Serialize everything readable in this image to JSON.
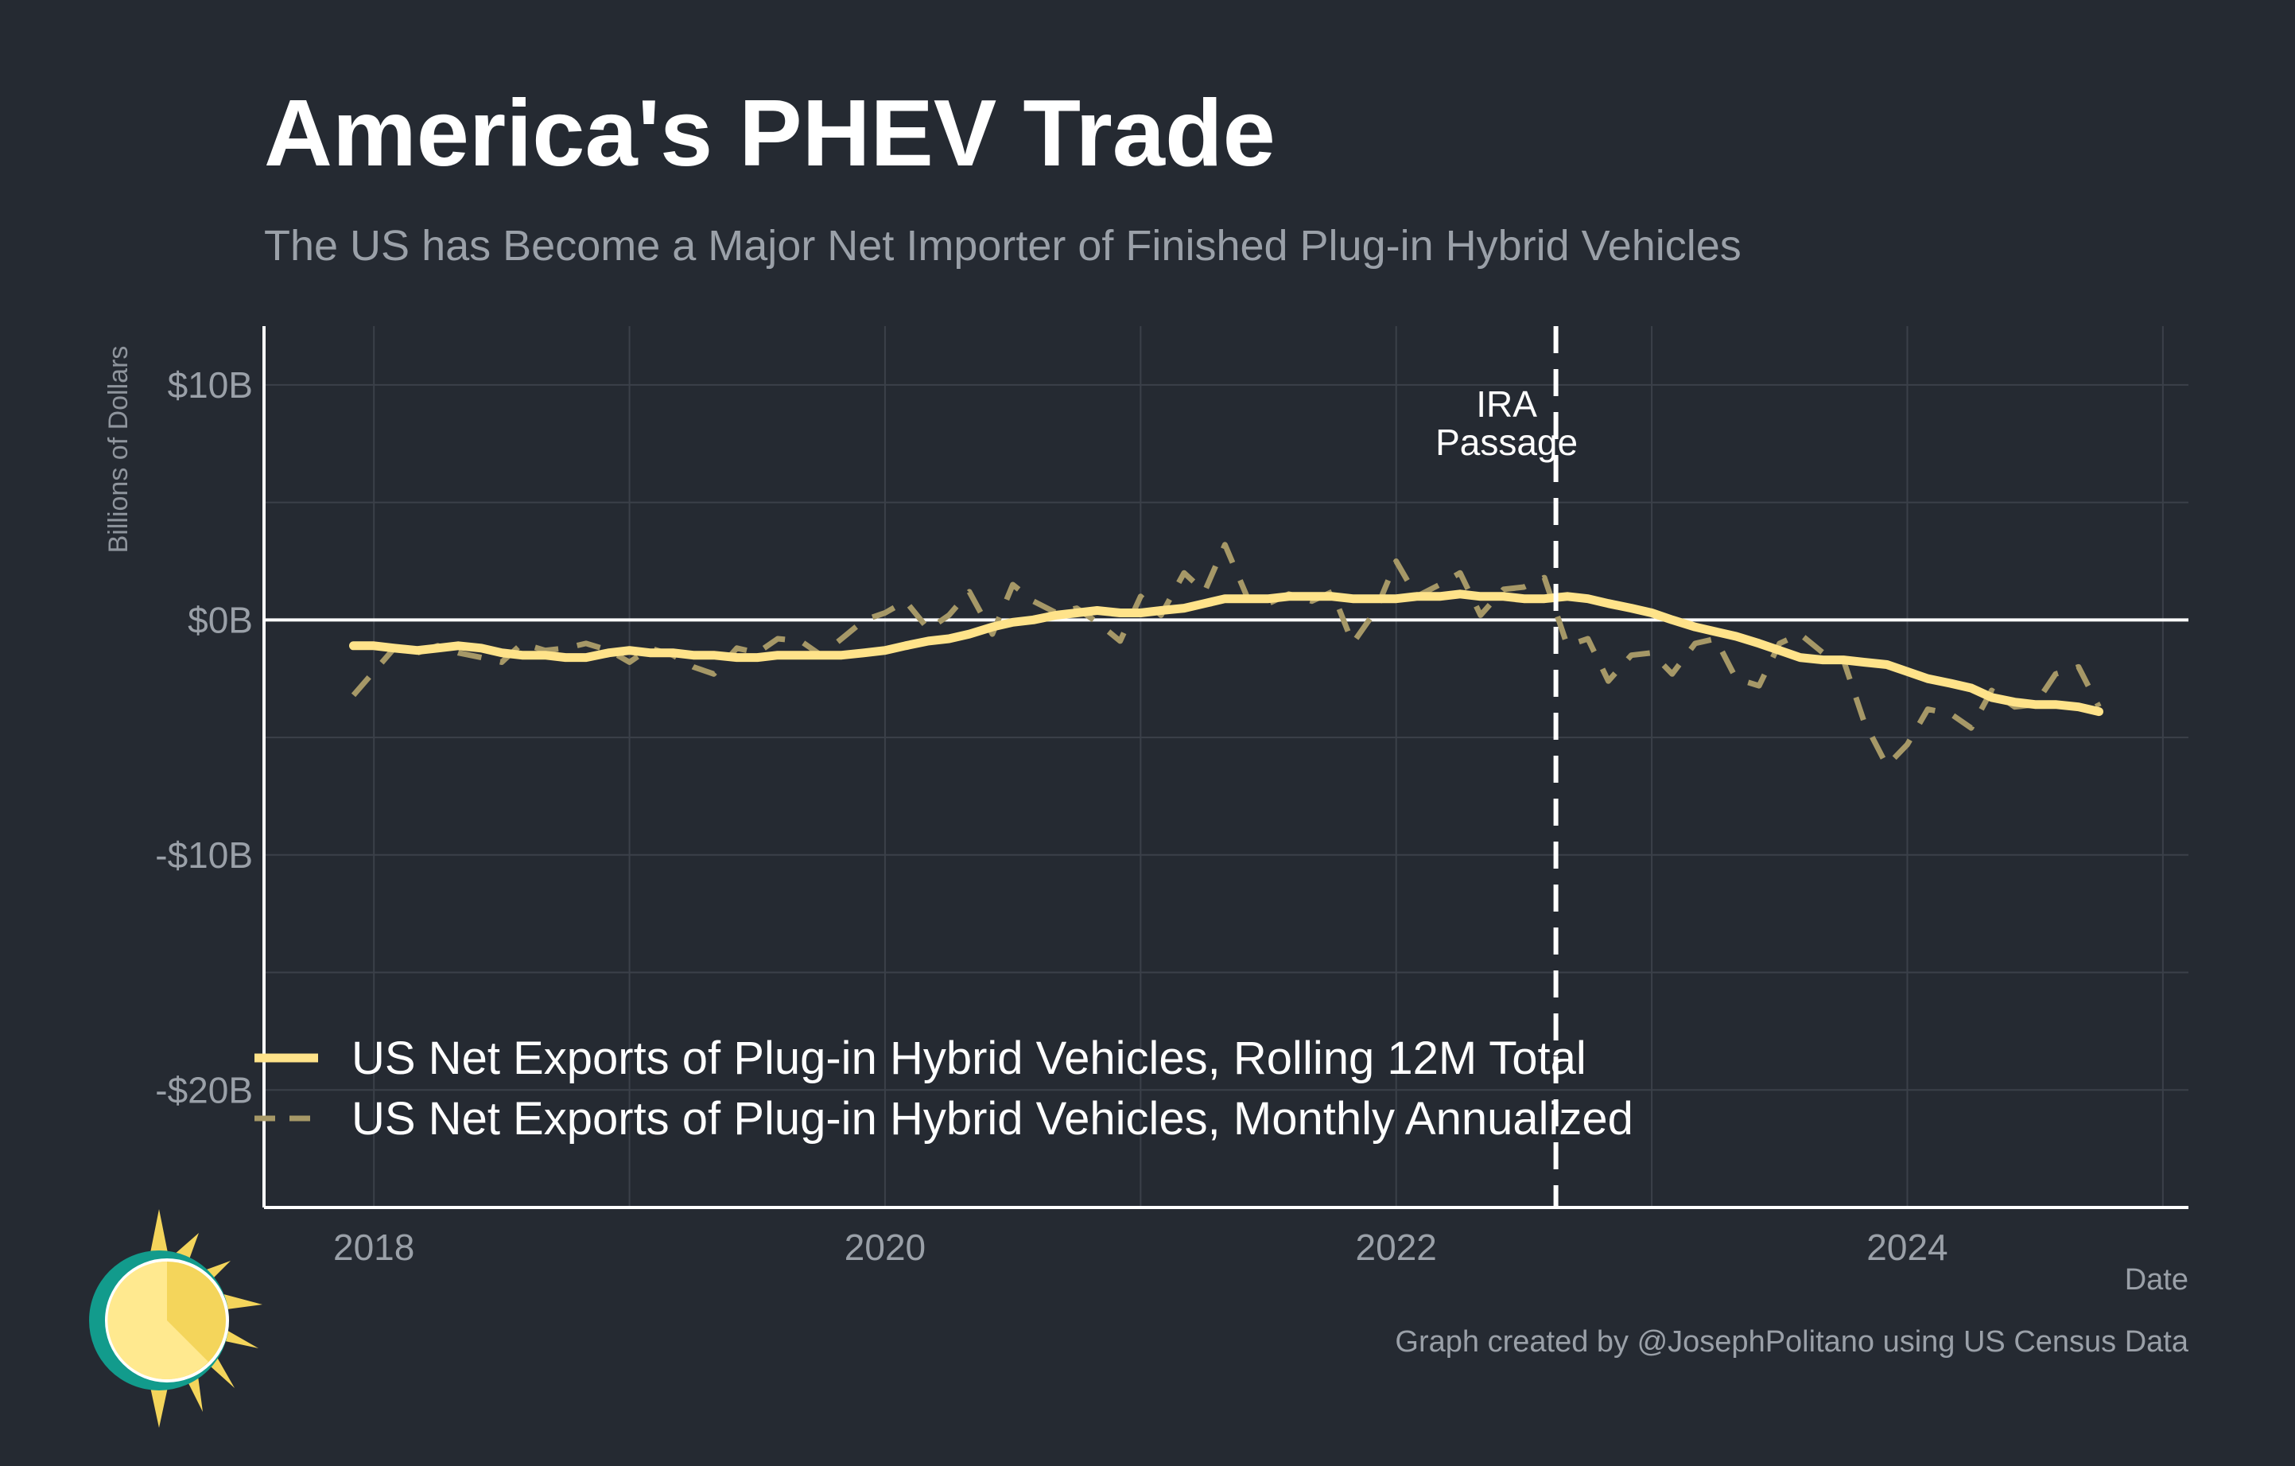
{
  "title": "America's PHEV Trade",
  "subtitle": "The US has Become a Major Net Importer of Finished Plug-in Hybrid Vehicles",
  "caption": "Graph created by @JosephPolitano using US Census Data",
  "logo_icon": "sun-logo-icon",
  "colors": {
    "background": "#252a32",
    "rolling_line": "#ffe38a",
    "monthly_line": "#a69867",
    "zero_line": "#ffffff",
    "ira_line": "#ffffff"
  },
  "chart_data": {
    "type": "line",
    "ylabel": "Billions of Dollars",
    "xlabel": "Date",
    "ylim": [
      -25,
      12.5
    ],
    "xlim": [
      2017.57,
      2025.1
    ],
    "y_ticks": [
      10,
      0,
      -10,
      -20
    ],
    "y_tick_labels": [
      "$10B",
      "$0B",
      "-$10B",
      "-$20B"
    ],
    "x_ticks": [
      2018,
      2020,
      2022,
      2024
    ],
    "x_tick_labels": [
      "2018",
      "2020",
      "2022",
      "2024"
    ],
    "grid": true,
    "legend_position": "bottom-left",
    "annotation": {
      "text_line1": "IRA",
      "text_line2": "Passage",
      "x": 2022.625
    },
    "series": [
      {
        "name": "US Net Exports of Plug-in Hybrid Vehicles, Rolling 12M Total",
        "style": "solid",
        "x": [
          2017.92,
          2018.0,
          2018.08,
          2018.17,
          2018.25,
          2018.33,
          2018.42,
          2018.5,
          2018.58,
          2018.67,
          2018.75,
          2018.83,
          2018.92,
          2019.0,
          2019.08,
          2019.17,
          2019.25,
          2019.33,
          2019.42,
          2019.5,
          2019.58,
          2019.67,
          2019.75,
          2019.83,
          2019.92,
          2020.0,
          2020.08,
          2020.17,
          2020.25,
          2020.33,
          2020.42,
          2020.5,
          2020.58,
          2020.67,
          2020.75,
          2020.83,
          2020.92,
          2021.0,
          2021.08,
          2021.17,
          2021.25,
          2021.33,
          2021.42,
          2021.5,
          2021.58,
          2021.67,
          2021.75,
          2021.83,
          2021.92,
          2022.0,
          2022.08,
          2022.17,
          2022.25,
          2022.33,
          2022.42,
          2022.5,
          2022.58,
          2022.67,
          2022.75,
          2022.83,
          2022.92,
          2023.0,
          2023.08,
          2023.17,
          2023.25,
          2023.33,
          2023.42,
          2023.5,
          2023.58,
          2023.67,
          2023.75,
          2023.83,
          2023.92,
          2024.0,
          2024.08,
          2024.17,
          2024.25,
          2024.33,
          2024.42,
          2024.5,
          2024.58,
          2024.67,
          2024.75
        ],
        "values": [
          -1.1,
          -1.1,
          -1.2,
          -1.3,
          -1.2,
          -1.1,
          -1.2,
          -1.4,
          -1.5,
          -1.5,
          -1.6,
          -1.6,
          -1.4,
          -1.3,
          -1.4,
          -1.4,
          -1.5,
          -1.5,
          -1.6,
          -1.6,
          -1.5,
          -1.5,
          -1.5,
          -1.5,
          -1.4,
          -1.3,
          -1.1,
          -0.9,
          -0.8,
          -0.6,
          -0.3,
          -0.1,
          0.0,
          0.2,
          0.3,
          0.4,
          0.3,
          0.3,
          0.4,
          0.5,
          0.7,
          0.9,
          0.9,
          0.9,
          1.0,
          1.0,
          1.0,
          0.9,
          0.9,
          0.9,
          1.0,
          1.0,
          1.1,
          1.0,
          1.0,
          0.9,
          0.9,
          1.0,
          0.9,
          0.7,
          0.5,
          0.3,
          0.0,
          -0.3,
          -0.5,
          -0.7,
          -1.0,
          -1.3,
          -1.6,
          -1.7,
          -1.7,
          -1.8,
          -1.9,
          -2.2,
          -2.5,
          -2.7,
          -2.9,
          -3.3,
          -3.5,
          -3.6,
          -3.6,
          -3.7,
          -3.9
        ]
      },
      {
        "name": "US Net Exports of Plug-in Hybrid Vehicles, Monthly Annualized",
        "style": "dashed",
        "x": [
          2017.92,
          2018.0,
          2018.08,
          2018.17,
          2018.25,
          2018.33,
          2018.42,
          2018.5,
          2018.58,
          2018.67,
          2018.75,
          2018.83,
          2018.92,
          2019.0,
          2019.08,
          2019.17,
          2019.25,
          2019.33,
          2019.42,
          2019.5,
          2019.58,
          2019.67,
          2019.75,
          2019.83,
          2019.92,
          2020.0,
          2020.08,
          2020.17,
          2020.25,
          2020.33,
          2020.42,
          2020.5,
          2020.58,
          2020.67,
          2020.75,
          2020.83,
          2020.92,
          2021.0,
          2021.08,
          2021.17,
          2021.25,
          2021.33,
          2021.42,
          2021.5,
          2021.58,
          2021.67,
          2021.75,
          2021.83,
          2021.92,
          2022.0,
          2022.08,
          2022.17,
          2022.25,
          2022.33,
          2022.42,
          2022.5,
          2022.58,
          2022.67,
          2022.75,
          2022.83,
          2022.92,
          2023.0,
          2023.08,
          2023.17,
          2023.25,
          2023.33,
          2023.42,
          2023.5,
          2023.58,
          2023.67,
          2023.75,
          2023.83,
          2023.92,
          2024.0,
          2024.08,
          2024.17,
          2024.25,
          2024.33,
          2024.42,
          2024.5,
          2024.58,
          2024.67,
          2024.75
        ],
        "values": [
          -3.2,
          -2.2,
          -1.2,
          -1.4,
          -1.1,
          -1.4,
          -1.6,
          -1.8,
          -1.0,
          -1.3,
          -1.2,
          -1.0,
          -1.3,
          -1.8,
          -1.2,
          -1.5,
          -2.0,
          -2.3,
          -1.2,
          -1.4,
          -0.8,
          -0.9,
          -1.5,
          -0.8,
          0.0,
          0.3,
          0.8,
          -0.4,
          0.2,
          1.2,
          -0.6,
          1.5,
          0.8,
          0.3,
          0.5,
          -0.1,
          -0.9,
          1.0,
          0.2,
          2.0,
          1.2,
          3.2,
          0.9,
          0.7,
          1.1,
          0.8,
          1.2,
          -1.0,
          0.4,
          2.5,
          1.0,
          1.5,
          2.0,
          0.2,
          1.3,
          1.4,
          1.8,
          -1.1,
          -0.8,
          -2.6,
          -1.5,
          -1.4,
          -2.3,
          -1.0,
          -0.8,
          -2.5,
          -2.8,
          -1.0,
          -0.6,
          -1.4,
          -1.7,
          -4.3,
          -6.2,
          -5.3,
          -3.8,
          -4.0,
          -4.6,
          -3.0,
          -3.7,
          -3.6,
          -2.3,
          -2.0,
          -3.7
        ]
      }
    ]
  }
}
